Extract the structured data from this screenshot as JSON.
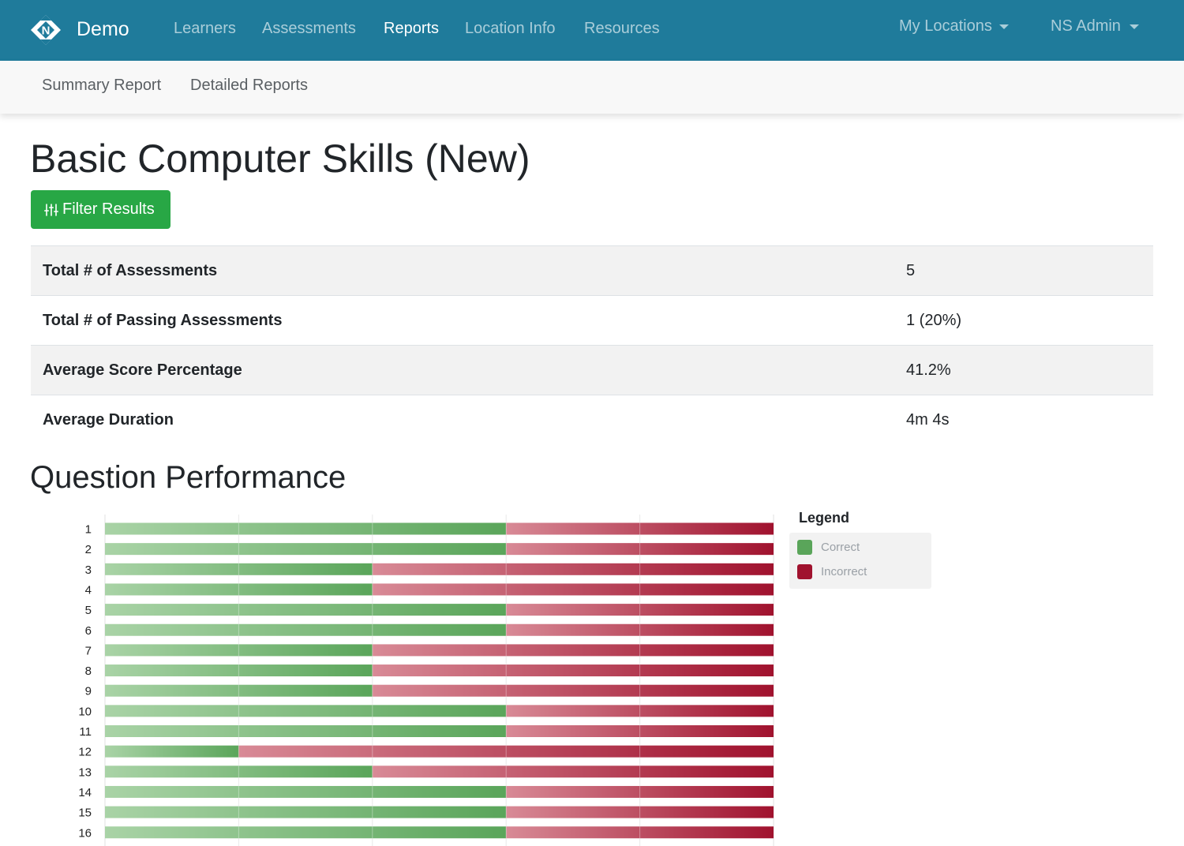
{
  "navbar": {
    "brand": "Demo",
    "logo_icon": "n-diamond-logo-icon",
    "links": [
      {
        "label": "Learners",
        "active": false
      },
      {
        "label": "Assessments",
        "active": false
      },
      {
        "label": "Reports",
        "active": true
      },
      {
        "label": "Location Info",
        "active": false
      },
      {
        "label": "Resources",
        "active": false
      }
    ],
    "locations_dropdown": "My Locations",
    "user_dropdown": "NS Admin",
    "color": "#1f7b9b"
  },
  "subnav": {
    "links": [
      {
        "label": "Summary Report"
      },
      {
        "label": "Detailed Reports"
      }
    ]
  },
  "page": {
    "title": "Basic Computer Skills (New)",
    "filter_button": {
      "label": "Filter Results",
      "icon": "sliders-icon",
      "color": "#28a745"
    }
  },
  "stats": [
    {
      "label": "Total # of Assessments",
      "value": "5"
    },
    {
      "label": "Total # of Passing Assessments",
      "value": "1 (20%)"
    },
    {
      "label": "Average Score Percentage",
      "value": "41.2%"
    },
    {
      "label": "Average Duration",
      "value": "4m 4s"
    }
  ],
  "question_performance": {
    "title": "Question Performance",
    "legend_title": "Legend"
  },
  "chart_data": {
    "type": "bar",
    "orientation": "horizontal",
    "stacked": true,
    "categories": [
      "1",
      "2",
      "3",
      "4",
      "5",
      "6",
      "7",
      "8",
      "9",
      "10",
      "11",
      "12",
      "13",
      "14",
      "15",
      "16"
    ],
    "series": [
      {
        "name": "Correct",
        "color": "#5aa55a",
        "values": [
          3,
          3,
          2,
          2,
          3,
          3,
          2,
          2,
          2,
          3,
          3,
          1,
          2,
          3,
          3,
          3
        ]
      },
      {
        "name": "Incorrect",
        "color": "#a0122e",
        "values": [
          2,
          2,
          3,
          3,
          2,
          2,
          3,
          3,
          3,
          2,
          2,
          4,
          3,
          2,
          2,
          2
        ]
      }
    ],
    "xlim": [
      0,
      5
    ],
    "grid": true,
    "legend_position": "right"
  }
}
